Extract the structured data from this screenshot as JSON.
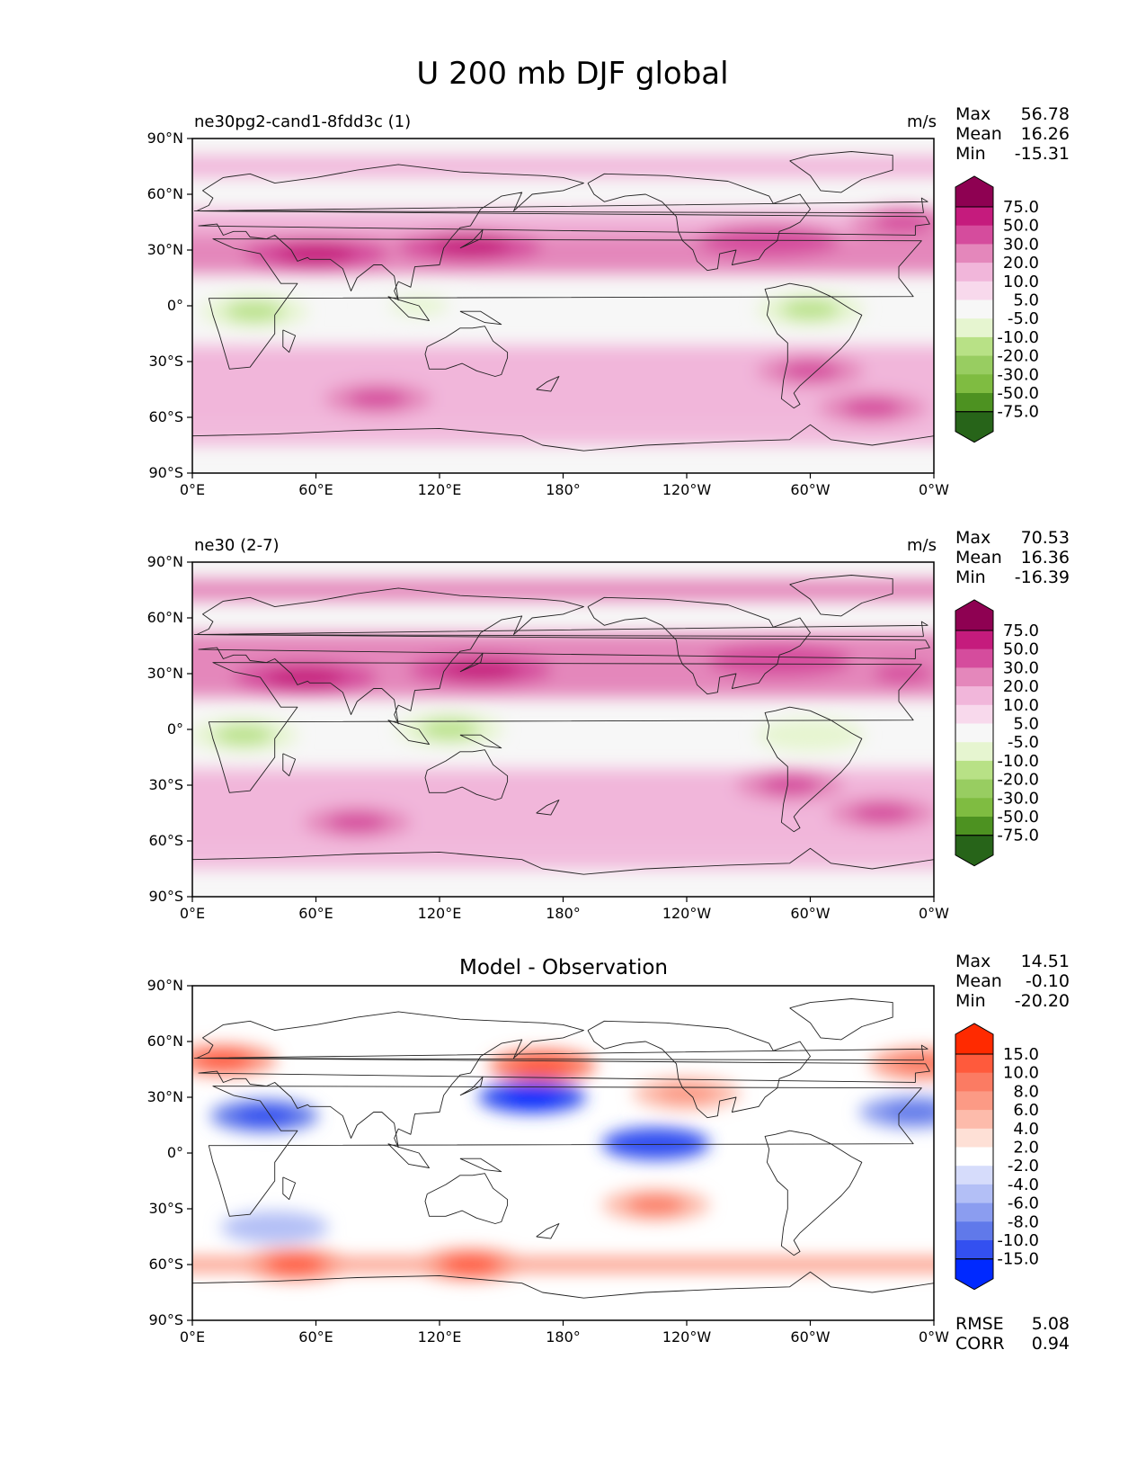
{
  "figure_title": "U 200 mb DJF global",
  "panels": [
    {
      "title": "ne30pg2-cand1-8fdd3c (1)",
      "center_title": "",
      "units": "m/s",
      "stats": [
        [
          "Max",
          "56.78"
        ],
        [
          "Mean",
          "16.26"
        ],
        [
          "Min",
          "-15.31"
        ]
      ],
      "colorbar": "field",
      "footer_stats": []
    },
    {
      "title": "ne30 (2-7)",
      "center_title": "",
      "units": "m/s",
      "stats": [
        [
          "Max",
          "70.53"
        ],
        [
          "Mean",
          "16.36"
        ],
        [
          "Min",
          "-16.39"
        ]
      ],
      "colorbar": "field",
      "footer_stats": []
    },
    {
      "title": "",
      "center_title": "Model - Observation",
      "units": "",
      "stats": [
        [
          "Max",
          "14.51"
        ],
        [
          "Mean",
          "-0.10"
        ],
        [
          "Min",
          "-20.20"
        ]
      ],
      "colorbar": "diff",
      "footer_stats": [
        [
          "RMSE",
          "5.08"
        ],
        [
          "CORR",
          "0.94"
        ]
      ]
    }
  ],
  "axes": {
    "x_ticks": [
      "0°E",
      "60°E",
      "120°E",
      "180°",
      "120°W",
      "60°W",
      "0°W"
    ],
    "y_ticks": [
      "90°N",
      "60°N",
      "30°N",
      "0°",
      "30°S",
      "60°S",
      "90°S"
    ]
  },
  "colorbars": {
    "field": {
      "levels": [
        "75.0",
        "50.0",
        "30.0",
        "20.0",
        "10.0",
        "5.0",
        "-5.0",
        "-10.0",
        "-20.0",
        "-30.0",
        "-50.0",
        "-75.0"
      ],
      "colors": [
        "#8e0152",
        "#c51b7d",
        "#d54c9d",
        "#e487bb",
        "#f1b6da",
        "#f8d9ec",
        "#f7f7f7",
        "#e6f5d0",
        "#b8e186",
        "#98cd61",
        "#7fbc41",
        "#4d9221",
        "#276419"
      ]
    },
    "diff": {
      "levels": [
        "15.0",
        "10.0",
        "8.0",
        "6.0",
        "4.0",
        "2.0",
        "-2.0",
        "-4.0",
        "-6.0",
        "-8.0",
        "-10.0",
        "-15.0"
      ],
      "colors": [
        "#ff2a00",
        "#ff5a3c",
        "#fb7b63",
        "#fc9a85",
        "#fdbbab",
        "#fee0d6",
        "#ffffff",
        "#d6dcfb",
        "#b3bff6",
        "#8b9df0",
        "#6079ea",
        "#3350f0",
        "#0029ff"
      ]
    }
  },
  "chart_data": [
    {
      "type": "heatmap",
      "title": "ne30pg2-cand1-8fdd3c (1)",
      "variable": "U 200 mb DJF global",
      "units": "m/s",
      "x_range": [
        0,
        360
      ],
      "y_range": [
        -90,
        90
      ],
      "stats": {
        "max": 56.78,
        "mean": 16.26,
        "min": -15.31
      },
      "contour_levels": [
        -75,
        -50,
        -30,
        -20,
        -10,
        -5,
        5,
        10,
        20,
        30,
        50,
        75
      ],
      "features": [
        {
          "lon": 60,
          "lat": 28,
          "value": 52
        },
        {
          "lon": 135,
          "lat": 32,
          "value": 55
        },
        {
          "lon": 280,
          "lat": 35,
          "value": 45
        },
        {
          "lon": 345,
          "lat": 45,
          "value": 35
        },
        {
          "lon": 30,
          "lat": -3,
          "value": -12
        },
        {
          "lon": 110,
          "lat": 0,
          "value": -6
        },
        {
          "lon": 300,
          "lat": -2,
          "value": -12
        },
        {
          "lon": 90,
          "lat": -50,
          "value": 35
        },
        {
          "lon": 300,
          "lat": -35,
          "value": 38
        },
        {
          "lon": 330,
          "lat": -55,
          "value": 35
        }
      ]
    },
    {
      "type": "heatmap",
      "title": "ne30 (2-7)",
      "variable": "U 200 mb DJF global",
      "units": "m/s",
      "x_range": [
        0,
        360
      ],
      "y_range": [
        -90,
        90
      ],
      "stats": {
        "max": 70.53,
        "mean": 16.36,
        "min": -16.39
      },
      "contour_levels": [
        -75,
        -50,
        -30,
        -20,
        -10,
        -5,
        5,
        10,
        20,
        30,
        50,
        75
      ],
      "features": [
        {
          "lon": 55,
          "lat": 28,
          "value": 55
        },
        {
          "lon": 140,
          "lat": 32,
          "value": 68
        },
        {
          "lon": 285,
          "lat": 37,
          "value": 45
        },
        {
          "lon": 345,
          "lat": 30,
          "value": 35
        },
        {
          "lon": 25,
          "lat": -3,
          "value": -12
        },
        {
          "lon": 125,
          "lat": 0,
          "value": -12
        },
        {
          "lon": 300,
          "lat": -3,
          "value": -10
        },
        {
          "lon": 80,
          "lat": -50,
          "value": 35
        },
        {
          "lon": 290,
          "lat": -30,
          "value": 35
        },
        {
          "lon": 335,
          "lat": -45,
          "value": 38
        }
      ]
    },
    {
      "type": "heatmap",
      "title": "Model - Observation",
      "variable": "U 200 mb DJF global",
      "units": "m/s",
      "x_range": [
        0,
        360
      ],
      "y_range": [
        -90,
        90
      ],
      "stats": {
        "max": 14.51,
        "mean": -0.1,
        "min": -20.2,
        "rmse": 5.08,
        "corr": 0.94
      },
      "contour_levels": [
        -15,
        -10,
        -8,
        -6,
        -4,
        -2,
        2,
        4,
        6,
        8,
        10,
        15
      ],
      "features": [
        {
          "lon": 170,
          "lat": 47,
          "value": 13
        },
        {
          "lon": 15,
          "lat": 50,
          "value": 10
        },
        {
          "lon": 355,
          "lat": 48,
          "value": 9
        },
        {
          "lon": 240,
          "lat": 32,
          "value": 6
        },
        {
          "lon": 165,
          "lat": 30,
          "value": -18
        },
        {
          "lon": 35,
          "lat": 20,
          "value": -12
        },
        {
          "lon": 350,
          "lat": 22,
          "value": -10
        },
        {
          "lon": 225,
          "lat": 5,
          "value": -15
        },
        {
          "lon": 50,
          "lat": -60,
          "value": 10
        },
        {
          "lon": 135,
          "lat": -60,
          "value": 10
        },
        {
          "lon": 225,
          "lat": -28,
          "value": 8
        },
        {
          "lon": 40,
          "lat": -40,
          "value": -6
        }
      ]
    }
  ]
}
